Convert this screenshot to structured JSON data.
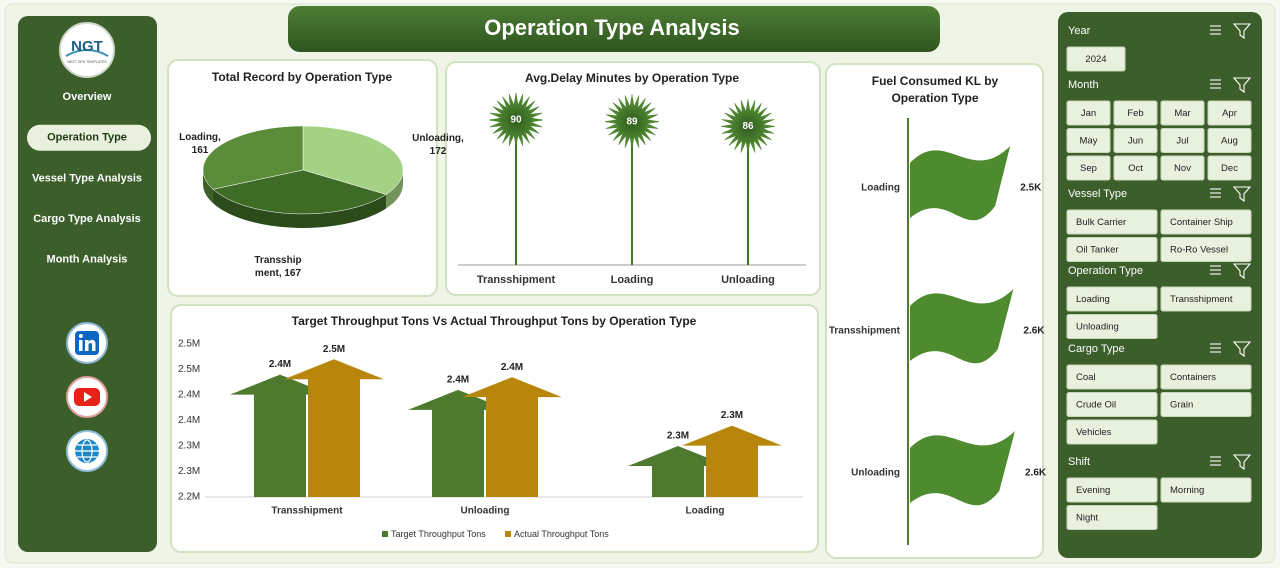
{
  "header": {
    "logo": "NGT",
    "logo_tagline": "NEXT GEN TEMPLATES",
    "title": "Operation Type Analysis"
  },
  "nav": {
    "items": [
      "Overview",
      "Operation Type",
      "Vessel Type Analysis",
      "Cargo Type Analysis",
      "Month Analysis"
    ],
    "active": 1
  },
  "chart_data": [
    {
      "type": "pie",
      "title": "Total Record by Operation Type",
      "categories": [
        "Unloading",
        "Transshipment",
        "Loading"
      ],
      "values": [
        172,
        167,
        161
      ],
      "value_labels": [
        "Unloading, 172",
        "Transshipment, 167",
        "Loading, 161"
      ],
      "colors": [
        "#a5d184",
        "#3e6b26",
        "#5b8c3a"
      ]
    },
    {
      "type": "lollipop",
      "title": "Avg.Delay Minutes by Operation Type",
      "categories": [
        "Transshipment",
        "Loading",
        "Unloading"
      ],
      "values": [
        90,
        89,
        86
      ],
      "color": "#3f7a24"
    },
    {
      "type": "arrow-bar",
      "title": "Target Throughput Tons Vs Actual Throughput Tons by Operation Type",
      "categories": [
        "Transshipment",
        "Unloading",
        "Loading"
      ],
      "series": [
        {
          "name": "Target Throughput Tons",
          "color": "#4e7a2e",
          "values": [
            2440000,
            2410000,
            2300000
          ],
          "value_labels": [
            "2.4M",
            "2.4M",
            "2.3M"
          ]
        },
        {
          "name": "Actual Throughput Tons",
          "color": "#b8860b",
          "values": [
            2470000,
            2435000,
            2340000
          ],
          "value_labels": [
            "2.5M",
            "2.4M",
            "2.3M"
          ]
        }
      ],
      "ylim": [
        2200000,
        2500000
      ],
      "yticks": [
        {
          "value": 2500000,
          "label": "2.5M"
        },
        {
          "value": 2450000,
          "label": "2.5M"
        },
        {
          "value": 2400000,
          "label": "2.4M"
        },
        {
          "value": 2350000,
          "label": "2.4M"
        },
        {
          "value": 2300000,
          "label": "2.3M"
        },
        {
          "value": 2250000,
          "label": "2.3M"
        },
        {
          "value": 2200000,
          "label": "2.2M"
        }
      ]
    },
    {
      "type": "flag",
      "title": "Fuel Consumed KL by Operation Type",
      "categories": [
        "Loading",
        "Transshipment",
        "Unloading"
      ],
      "values": [
        2500,
        2580,
        2620
      ],
      "value_labels": [
        "2.5K",
        "2.6K",
        "2.6K"
      ],
      "color": "#4e8a2e"
    }
  ],
  "slicers": [
    {
      "title": "Year",
      "items": [
        "2024"
      ],
      "columns": 4
    },
    {
      "title": "Month",
      "items": [
        "Jan",
        "Feb",
        "Mar",
        "Apr",
        "May",
        "Jun",
        "Jul",
        "Aug",
        "Sep",
        "Oct",
        "Nov",
        "Dec"
      ],
      "columns": 4
    },
    {
      "title": "Vessel Type",
      "items": [
        "Bulk Carrier",
        "Container Ship",
        "Oil Tanker",
        "Ro-Ro Vessel"
      ],
      "columns": 2
    },
    {
      "title": "Operation Type",
      "items": [
        "Loading",
        "Transshipment",
        "Unloading"
      ],
      "columns": 2
    },
    {
      "title": "Cargo Type",
      "items": [
        "Coal",
        "Containers",
        "Crude Oil",
        "Grain",
        "Vehicles"
      ],
      "columns": 2
    },
    {
      "title": "Shift",
      "items": [
        "Evening",
        "Morning",
        "Night"
      ],
      "columns": 2
    }
  ]
}
